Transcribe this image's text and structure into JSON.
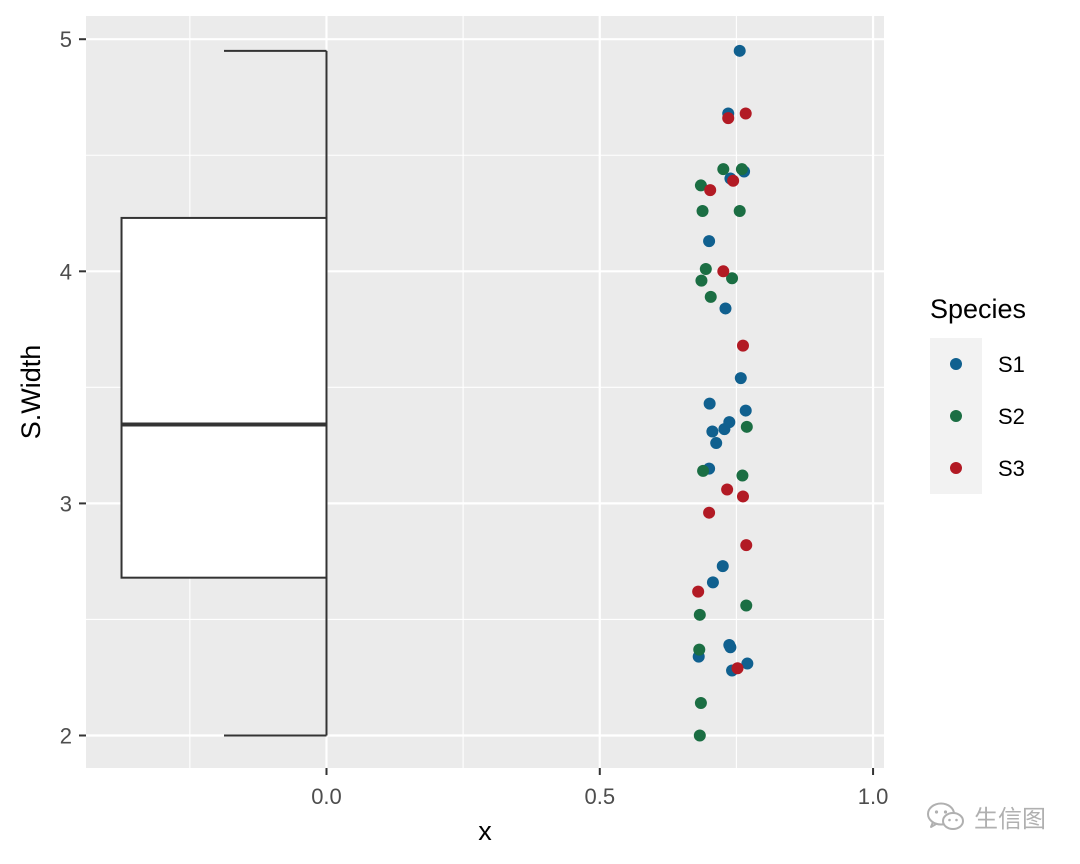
{
  "chart_data": {
    "type": "scatter",
    "xlabel": "x",
    "ylabel": "S.Width",
    "xlim": [
      -0.44,
      1.02
    ],
    "ylim": [
      1.86,
      5.1
    ],
    "x_ticks": [
      0.0,
      0.5,
      1.0
    ],
    "x_tick_labels": [
      "0.0",
      "0.5",
      "1.0"
    ],
    "y_ticks": [
      2,
      3,
      4,
      5
    ],
    "y_tick_labels": [
      "2",
      "3",
      "4",
      "5"
    ],
    "grid": true,
    "background": "#ebebeb",
    "boxplot": {
      "x_left": -0.375,
      "x_right": 0.0,
      "min": 2.0,
      "q1": 2.68,
      "median": 3.34,
      "q3": 4.23,
      "max": 4.95,
      "fill": "#ffffff",
      "stroke": "#333333"
    },
    "legend": {
      "title": "Species",
      "position": "right"
    },
    "series": [
      {
        "name": "S1",
        "color": "#10608f",
        "points": [
          [
            0.756,
            4.95
          ],
          [
            0.735,
            4.68
          ],
          [
            0.739,
            4.4
          ],
          [
            0.764,
            4.43
          ],
          [
            0.7,
            4.13
          ],
          [
            0.73,
            3.84
          ],
          [
            0.758,
            3.54
          ],
          [
            0.701,
            3.43
          ],
          [
            0.767,
            3.4
          ],
          [
            0.737,
            3.35
          ],
          [
            0.728,
            3.32
          ],
          [
            0.706,
            3.31
          ],
          [
            0.713,
            3.26
          ],
          [
            0.7,
            3.15
          ],
          [
            0.725,
            2.73
          ],
          [
            0.707,
            2.66
          ],
          [
            0.737,
            2.39
          ],
          [
            0.739,
            2.38
          ],
          [
            0.681,
            2.34
          ],
          [
            0.77,
            2.31
          ],
          [
            0.742,
            2.28
          ]
        ]
      },
      {
        "name": "S2",
        "color": "#1b6e43",
        "points": [
          [
            0.726,
            4.44
          ],
          [
            0.76,
            4.44
          ],
          [
            0.685,
            4.37
          ],
          [
            0.688,
            4.26
          ],
          [
            0.756,
            4.26
          ],
          [
            0.694,
            4.01
          ],
          [
            0.742,
            3.97
          ],
          [
            0.686,
            3.96
          ],
          [
            0.703,
            3.89
          ],
          [
            0.769,
            3.33
          ],
          [
            0.689,
            3.14
          ],
          [
            0.761,
            3.12
          ],
          [
            0.768,
            2.56
          ],
          [
            0.683,
            2.52
          ],
          [
            0.682,
            2.37
          ],
          [
            0.685,
            2.14
          ],
          [
            0.683,
            2.0
          ]
        ]
      },
      {
        "name": "S3",
        "color": "#b21a24",
        "points": [
          [
            0.767,
            4.68
          ],
          [
            0.735,
            4.66
          ],
          [
            0.744,
            4.39
          ],
          [
            0.702,
            4.35
          ],
          [
            0.726,
            4.0
          ],
          [
            0.762,
            3.68
          ],
          [
            0.733,
            3.06
          ],
          [
            0.762,
            3.03
          ],
          [
            0.7,
            2.96
          ],
          [
            0.768,
            2.82
          ],
          [
            0.68,
            2.62
          ],
          [
            0.752,
            2.29
          ]
        ]
      }
    ]
  },
  "watermark": {
    "text": "生信图",
    "icon": "wechat-icon"
  }
}
